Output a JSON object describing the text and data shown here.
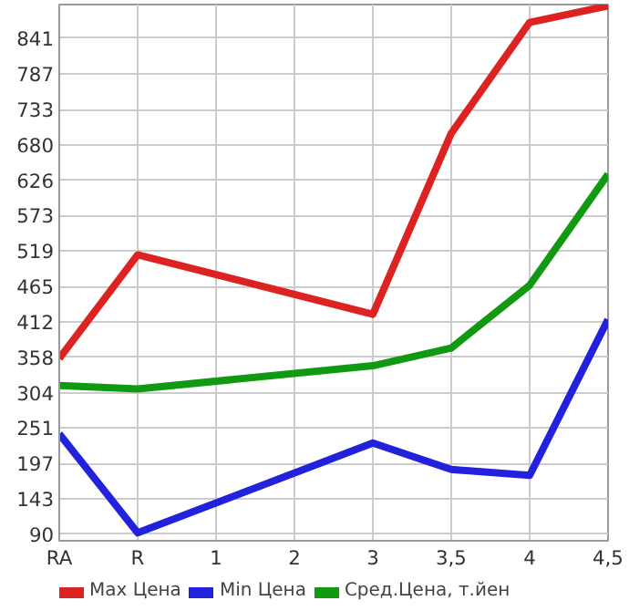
{
  "chart_data": {
    "type": "line",
    "categories": [
      "RA",
      "R",
      "1",
      "2",
      "3",
      "3,5",
      "4",
      "4,5"
    ],
    "series": [
      {
        "name": "Max Цена",
        "color": "#dd2222",
        "values": [
          356,
          513,
          null,
          null,
          423,
          697,
          865,
          890
        ]
      },
      {
        "name": "Min Цена",
        "color": "#2222dd",
        "values": [
          242,
          92,
          null,
          null,
          228,
          188,
          179,
          415
        ]
      },
      {
        "name": "Сред.Цена, т.йен",
        "color": "#119911",
        "values": [
          315,
          310,
          null,
          null,
          345,
          372,
          467,
          635
        ]
      }
    ],
    "ylim": [
      80,
      892
    ],
    "yticks": [
      90,
      143,
      197,
      251,
      304,
      358,
      412,
      465,
      519,
      573,
      626,
      680,
      733,
      787,
      841
    ],
    "grid": true,
    "legend": "bottom",
    "marker": "none",
    "line_style": "solid"
  }
}
